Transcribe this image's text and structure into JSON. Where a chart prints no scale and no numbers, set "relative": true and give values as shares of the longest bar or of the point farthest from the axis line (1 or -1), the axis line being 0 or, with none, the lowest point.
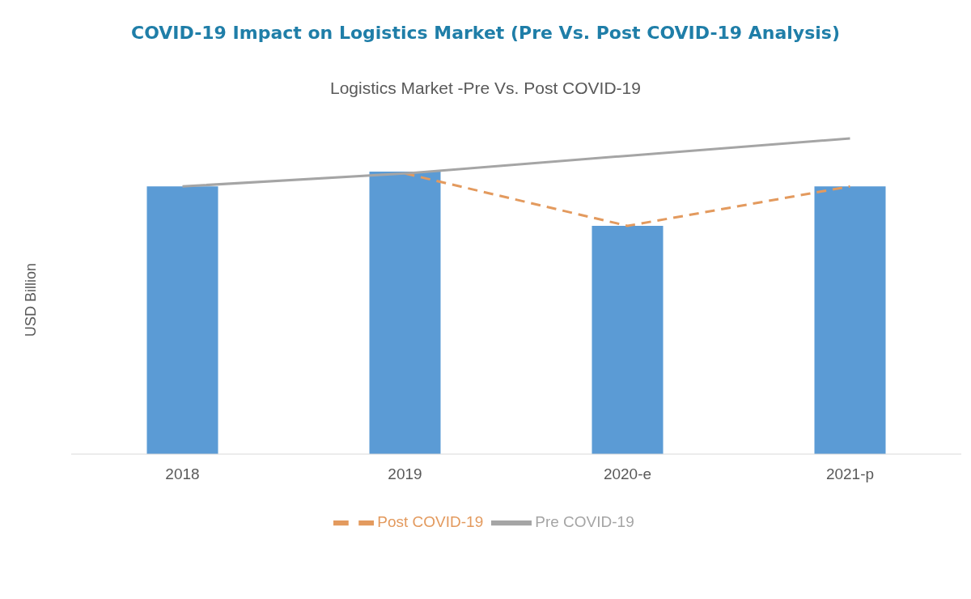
{
  "chart_data": {
    "type": "bar",
    "title": "COVID-19 Impact on Logistics Market (Pre Vs. Post COVID-19 Analysis)",
    "subtitle": "Logistics Market -Pre Vs. Post COVID-19",
    "ylabel": "USD Billion",
    "relative": true,
    "categories": [
      "2018",
      "2019",
      "2020-e",
      "2021-p"
    ],
    "series": [
      {
        "color": "#5b9bd5",
        "values": [
          0.848,
          0.895,
          0.723,
          0.848
        ]
      },
      {
        "type": "line",
        "name": "Post COVID-19",
        "color": "#e39a5e",
        "line_style": "dashed",
        "values": [
          null,
          0.889,
          0.723,
          0.848
        ]
      },
      {
        "type": "line",
        "name": "Pre COVID-19",
        "color": "#a5a5a5",
        "line_style": "solid",
        "values": [
          0.848,
          0.889,
          0.945,
          1
        ]
      }
    ],
    "grid": false,
    "legend": "bottom",
    "marker": "none"
  }
}
